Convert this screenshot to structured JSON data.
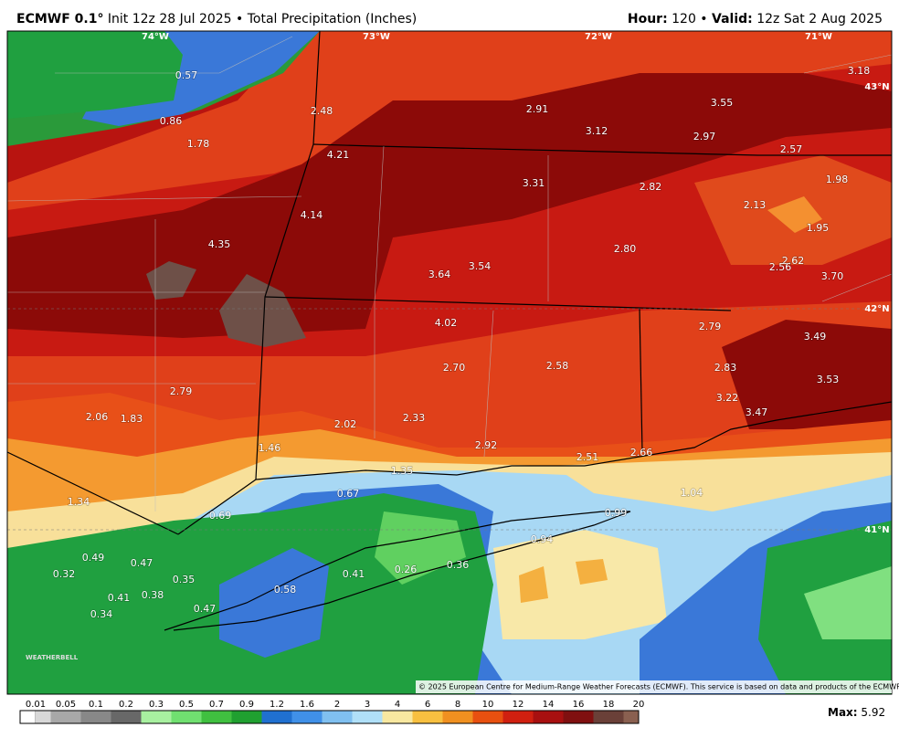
{
  "header": {
    "model": "ECMWF 0.1°",
    "info": "Init 12z 28 Jul 2025 • Total Precipitation (Inches)",
    "hour_label": "Hour:",
    "hour": "120 •",
    "valid_label": "Valid:",
    "valid": "12z Sat 2 Aug 2025"
  },
  "axes": {
    "lon": [
      "74°W",
      "73°W",
      "72°W",
      "71°W"
    ],
    "lat": [
      "43°N",
      "42°N",
      "41°N"
    ]
  },
  "points": [
    "0.57",
    "0.86",
    "1.78",
    "2.48",
    "4.21",
    "4.14",
    "4.35",
    "2.91",
    "3.12",
    "3.55",
    "2.97",
    "3.18",
    "2.57",
    "1.98",
    "3.31",
    "2.82",
    "2.13",
    "1.95",
    "2.80",
    "2.62",
    "2.56",
    "3.70",
    "3.64",
    "3.54",
    "4.02",
    "2.79",
    "3.49",
    "2.70",
    "2.58",
    "2.83",
    "3.53",
    "3.22",
    "3.47",
    "2.79",
    "2.06",
    "1.83",
    "2.02",
    "2.33",
    "2.92",
    "2.51",
    "2.66",
    "1.46",
    "1.34",
    "1.35",
    "0.67",
    "0.69",
    "0.99",
    "1.04",
    "0.94",
    "0.49",
    "0.47",
    "0.32",
    "0.35",
    "0.41",
    "0.38",
    "0.47",
    "0.34",
    "0.58",
    "0.41",
    "0.26",
    "0.36"
  ],
  "colorbar": [
    "0.01",
    "0.05",
    "0.1",
    "0.2",
    "0.3",
    "0.5",
    "0.7",
    "0.9",
    "1.2",
    "1.6",
    "2",
    "3",
    "4",
    "6",
    "8",
    "10",
    "12",
    "14",
    "16",
    "18",
    "20"
  ],
  "watermark": "WEATHERBELL",
  "footer": {
    "copyright": "© 2025 European Centre for Medium-Range Weather Forecasts (ECMWF). This service is based on data and products of the ECMWF.",
    "max_label": "Max:",
    "max": "5.92"
  }
}
